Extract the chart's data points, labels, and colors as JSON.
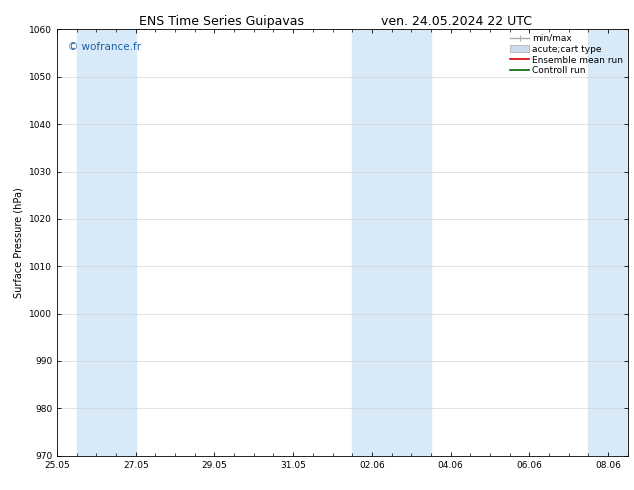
{
  "title_left": "ENS Time Series Guipavas",
  "title_right": "ven. 24.05.2024 22 UTC",
  "ylabel": "Surface Pressure (hPa)",
  "ylim": [
    970,
    1060
  ],
  "yticks": [
    970,
    980,
    990,
    1000,
    1010,
    1020,
    1030,
    1040,
    1050,
    1060
  ],
  "xlim": [
    0,
    14.5
  ],
  "xtick_labels": [
    "25.05",
    "27.05",
    "29.05",
    "31.05",
    "02.06",
    "04.06",
    "06.06",
    "08.06"
  ],
  "xtick_positions": [
    0,
    2,
    4,
    6,
    8,
    10,
    12,
    14
  ],
  "shaded_bands": [
    {
      "x_start": 0.5,
      "x_end": 2.0,
      "color": "#d8eaf8"
    },
    {
      "x_start": 7.5,
      "x_end": 9.5,
      "color": "#d8eaf8"
    },
    {
      "x_start": 13.5,
      "x_end": 14.5,
      "color": "#d8eaf8"
    }
  ],
  "watermark_text": "© wofrance.fr",
  "watermark_color": "#1a5fa8",
  "background_color": "#ffffff",
  "plot_bg_color": "#ffffff",
  "grid_color": "#cccccc",
  "legend_items": [
    {
      "label": "min/max",
      "color": "#aaaaaa",
      "style": "errorbar"
    },
    {
      "label": "acute;cart type",
      "color": "#ccdcec",
      "style": "bar"
    },
    {
      "label": "Ensemble mean run",
      "color": "#dd0000",
      "style": "line"
    },
    {
      "label": "Controll run",
      "color": "#006600",
      "style": "line"
    }
  ],
  "title_fontsize": 9,
  "label_fontsize": 7,
  "tick_fontsize": 6.5,
  "legend_fontsize": 6.5,
  "watermark_fontsize": 7.5
}
